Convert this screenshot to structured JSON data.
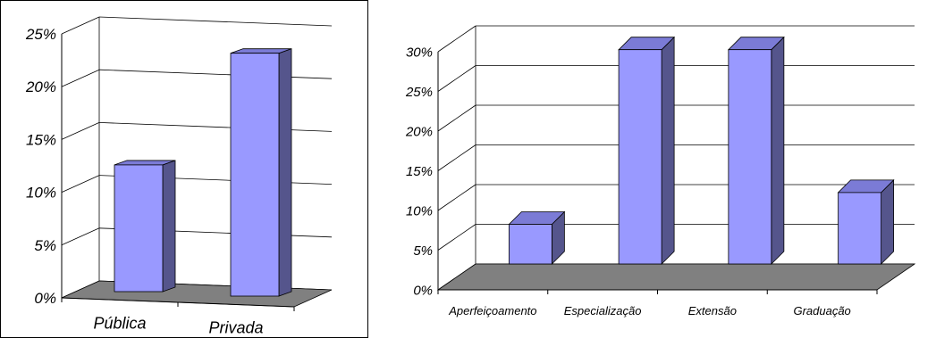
{
  "chart_data": [
    {
      "type": "bar",
      "title": "",
      "xlabel": "",
      "ylabel": "",
      "categories": [
        "Pública",
        "Privada"
      ],
      "values": [
        12,
        23
      ],
      "ylim": [
        0,
        25
      ],
      "yticks": [
        "0%",
        "5%",
        "10%",
        "15%",
        "20%",
        "25%"
      ],
      "grid": true,
      "three_d": true,
      "legend": "none",
      "colors": {
        "bar_front": "#9999ff",
        "bar_side": "#55558c",
        "bar_top": "#7b7bd6",
        "floor": "#808080",
        "grid": "#000000"
      }
    },
    {
      "type": "bar",
      "title": "",
      "xlabel": "",
      "ylabel": "",
      "categories": [
        "Aperfeiçoamento",
        "Especialização",
        "Extensão",
        "Graduação"
      ],
      "values": [
        5,
        27,
        27,
        9
      ],
      "ylim": [
        0,
        30
      ],
      "yticks": [
        "0%",
        "5%",
        "10%",
        "15%",
        "20%",
        "25%",
        "30%"
      ],
      "grid": true,
      "three_d": true,
      "legend": "none",
      "colors": {
        "bar_front": "#9999ff",
        "bar_side": "#55558c",
        "bar_top": "#7b7bd6",
        "floor": "#808080",
        "grid": "#000000"
      }
    }
  ]
}
